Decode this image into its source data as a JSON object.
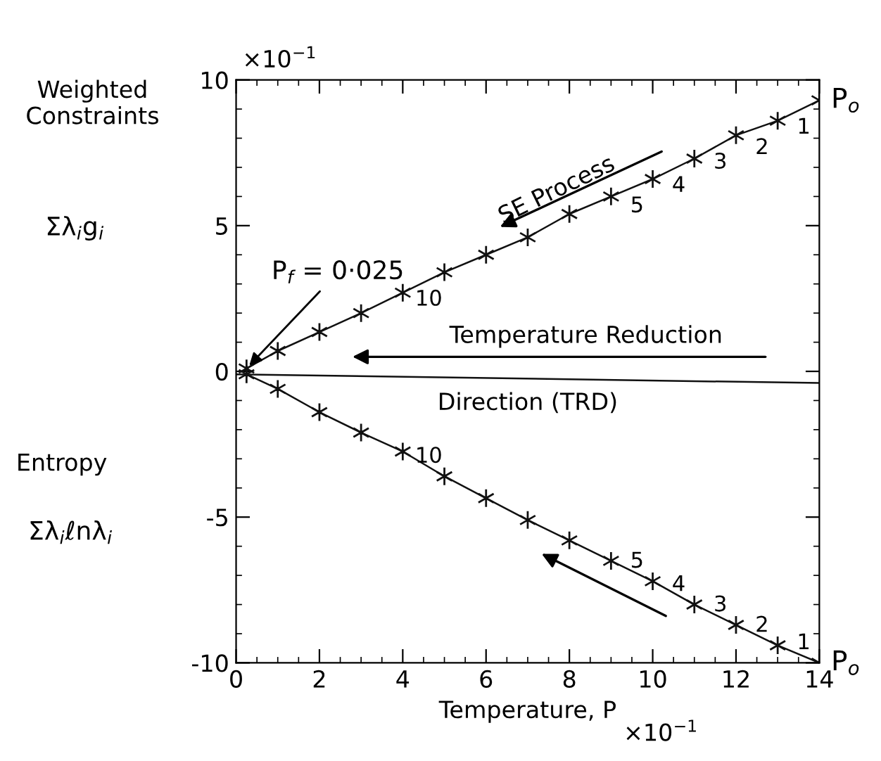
{
  "chart_data": {
    "type": "line",
    "xlabel": "Temperature, P",
    "xlim": [
      0,
      14
    ],
    "xticks": [
      0,
      2,
      4,
      6,
      8,
      10,
      12,
      14
    ],
    "ylim": [
      -10,
      10
    ],
    "yticks": [
      -10,
      -5,
      0,
      5,
      10
    ],
    "grid": false,
    "legend": false,
    "marker": "cross",
    "line_style": "solid",
    "series": [
      {
        "color": "#111111",
        "x": [
          14,
          13,
          12,
          11,
          10,
          9,
          8,
          7,
          6,
          5,
          4,
          3,
          2,
          1,
          0.25
        ],
        "values": [
          9.3,
          8.6,
          8.1,
          7.3,
          6.6,
          6.0,
          5.4,
          4.6,
          4.0,
          3.4,
          2.7,
          2.0,
          1.35,
          0.7,
          0.1
        ]
      },
      {
        "color": "#111111",
        "x": [
          14,
          13,
          12,
          11,
          10,
          9,
          8,
          7,
          6,
          5,
          4,
          3,
          2,
          1,
          0.25
        ],
        "values": [
          -10,
          -9.4,
          -8.7,
          -8.0,
          -7.2,
          -6.5,
          -5.8,
          -5.1,
          -4.35,
          -3.6,
          -2.75,
          -2.1,
          -1.4,
          -0.6,
          -0.1
        ]
      },
      {
        "color": "#111111",
        "x": [
          0,
          14
        ],
        "values": [
          -0.1,
          -0.4
        ],
        "marker": "none"
      }
    ],
    "annotations": [
      "×10$^{−1}$",
      "×10$^{−1}$",
      "Weighted\nConstraints",
      "Σλ$_{i}$g$_{i}$",
      "Entropy",
      "Σλ$_{i}$ℓnλ$_{i}$",
      "SE Process",
      "Temperature Reduction",
      "Direction (TRD)",
      {
        "text": "P$_{f}$ = 0·025",
        "x": 0.25,
        "y": 0.1
      },
      {
        "text": "P$_{o}$",
        "x": 14,
        "y": 9.3
      },
      {
        "text": "1",
        "x": 14,
        "y": 9.3
      },
      {
        "text": "2",
        "x": 13,
        "y": 8.6
      },
      {
        "text": "3",
        "x": 12,
        "y": 8.1
      },
      {
        "text": "4",
        "x": 11,
        "y": 7.3
      },
      {
        "text": "5",
        "x": 10,
        "y": 6.6
      },
      {
        "text": "10",
        "x": 5,
        "y": 3.4
      },
      {
        "text": "P$_{o}$",
        "x": 14,
        "y": -10
      },
      {
        "text": "1",
        "x": 14,
        "y": -10
      },
      {
        "text": "2",
        "x": 13,
        "y": -9.4
      },
      {
        "text": "3",
        "x": 12,
        "y": -8.7
      },
      {
        "text": "4",
        "x": 11,
        "y": -8.0
      },
      {
        "text": "5",
        "x": 10,
        "y": -7.2
      },
      {
        "text": "10",
        "x": 5,
        "y": -3.6
      }
    ]
  }
}
